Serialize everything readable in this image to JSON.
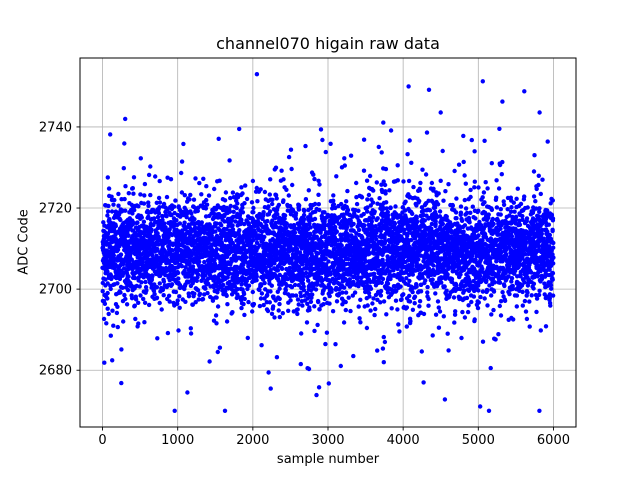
{
  "chart_data": {
    "type": "scatter",
    "title": "channel070 higain raw data",
    "xlabel": "sample number",
    "ylabel": "ADC Code",
    "marker_color": "#0000ff",
    "grid": true,
    "grid_color": "#b0b0b0",
    "axes_color": "#000000",
    "xlim": [
      -300,
      6300
    ],
    "ylim": [
      2666,
      2757
    ],
    "xticks": [
      0,
      1000,
      2000,
      3000,
      4000,
      5000,
      6000
    ],
    "yticks": [
      2680,
      2700,
      2720,
      2740
    ],
    "n_points": 6000,
    "x_start": 0,
    "x_end": 5999,
    "y_mean": 2709.5,
    "y_core_std": 6.3,
    "tail_fraction": 0.08,
    "y_tail_std": 16,
    "y_min_observed": 2670,
    "y_max_observed": 2753,
    "seed": 70
  }
}
